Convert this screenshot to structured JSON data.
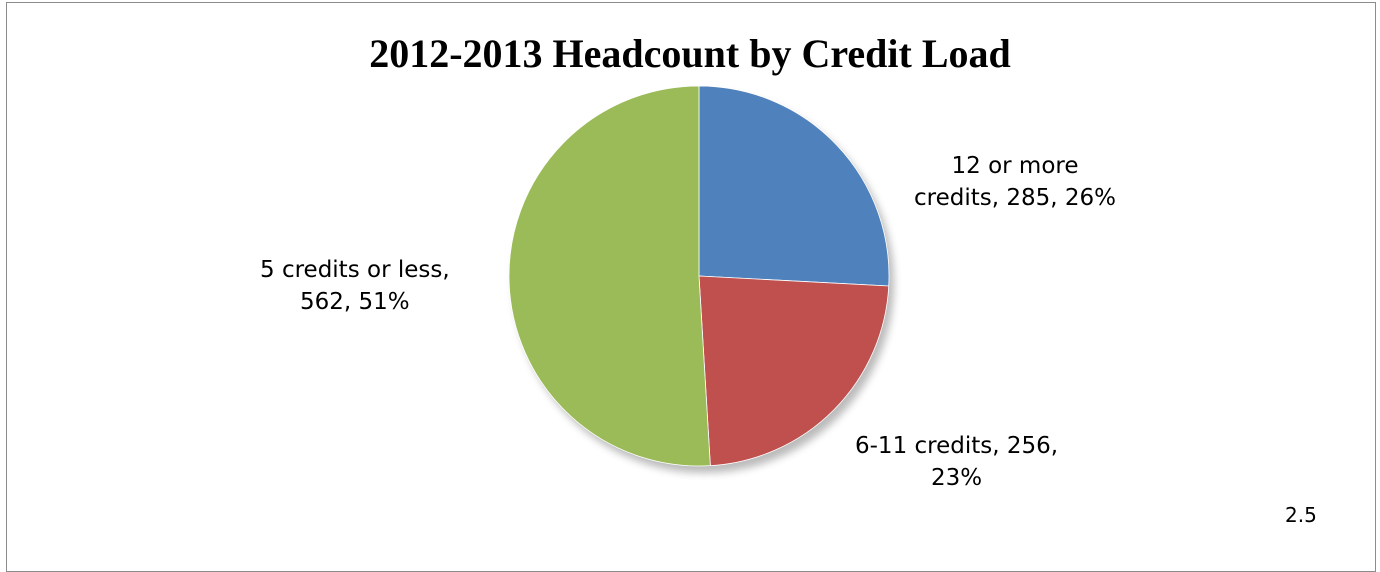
{
  "chart_data": {
    "type": "pie",
    "title": "2012-2013 Headcount by Credit Load",
    "slices": [
      {
        "label": "12 or more credits",
        "value": 285,
        "percent": 26,
        "color": "#4f81bd",
        "data_label_lines": [
          "12 or more",
          "credits, 285, 26%"
        ]
      },
      {
        "label": "6-11 credits",
        "value": 256,
        "percent": 23,
        "color": "#c0504d",
        "data_label_lines": [
          "6-11 credits, 256,",
          "23%"
        ]
      },
      {
        "label": "5 credits or less",
        "value": 562,
        "percent": 51,
        "color": "#9bbb59",
        "data_label_lines": [
          "5 credits or less,",
          "562, 51%"
        ]
      }
    ],
    "legend": "none",
    "style": "3d-shadow"
  },
  "footer": {
    "page_number": "2.5"
  }
}
